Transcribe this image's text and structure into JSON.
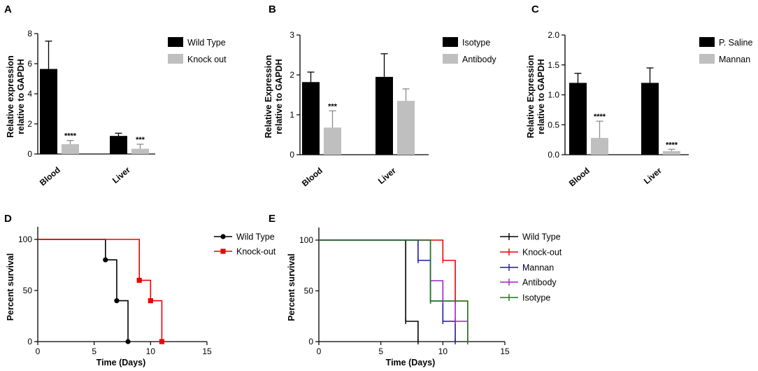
{
  "chart_data": [
    {
      "type": "bar",
      "panel": "A",
      "categories": [
        "Blood",
        "Liver"
      ],
      "ylabel_lines": [
        "Relative expression",
        "relative to GAPDH"
      ],
      "ylim": [
        0,
        8
      ],
      "yticks": [
        0,
        2,
        4,
        6,
        8
      ],
      "ytick_labels": [
        "0",
        "2",
        "4",
        "6",
        "8"
      ],
      "series": [
        {
          "name": "Wild Type",
          "color": "#000000",
          "values": [
            5.65,
            1.2
          ],
          "errors": [
            1.85,
            0.18
          ]
        },
        {
          "name": "Knock out",
          "color": "#bfbfbf",
          "values": [
            0.65,
            0.35
          ],
          "errors": [
            0.25,
            0.3
          ]
        }
      ],
      "annotations": [
        {
          "series": 1,
          "category": 0,
          "text": "****"
        },
        {
          "series": 1,
          "category": 1,
          "text": "***"
        }
      ]
    },
    {
      "type": "bar",
      "panel": "B",
      "categories": [
        "Blood",
        "Liver"
      ],
      "ylabel_lines": [
        "Relative Expression",
        "relative to GAPDH"
      ],
      "ylim": [
        0,
        3
      ],
      "yticks": [
        0,
        1,
        2,
        3
      ],
      "ytick_labels": [
        "0",
        "1",
        "2",
        "3"
      ],
      "series": [
        {
          "name": "Isotype",
          "color": "#000000",
          "values": [
            1.82,
            1.95
          ],
          "errors": [
            0.25,
            0.58
          ]
        },
        {
          "name": "Antibody",
          "color": "#bfbfbf",
          "values": [
            0.68,
            1.35
          ],
          "errors": [
            0.42,
            0.3
          ]
        }
      ],
      "annotations": [
        {
          "series": 1,
          "category": 0,
          "text": "***"
        }
      ]
    },
    {
      "type": "bar",
      "panel": "C",
      "categories": [
        "Blood",
        "Liver"
      ],
      "ylabel_lines": [
        "Relative Expression",
        "relative to GAPDH"
      ],
      "ylim": [
        0,
        2.0
      ],
      "yticks": [
        0,
        0.5,
        1.0,
        1.5,
        2.0
      ],
      "ytick_labels": [
        "0.0",
        "0.5",
        "1.0",
        "1.5",
        "2.0"
      ],
      "series": [
        {
          "name": "P. Saline",
          "color": "#000000",
          "values": [
            1.2,
            1.2
          ],
          "errors": [
            0.16,
            0.25
          ]
        },
        {
          "name": "Mannan",
          "color": "#bfbfbf",
          "values": [
            0.28,
            0.06
          ],
          "errors": [
            0.28,
            0.03
          ]
        }
      ],
      "annotations": [
        {
          "series": 1,
          "category": 0,
          "text": "****"
        },
        {
          "series": 1,
          "category": 1,
          "text": "****"
        }
      ]
    },
    {
      "type": "line",
      "subtype": "survival",
      "panel": "D",
      "xlabel": "Time (Days)",
      "ylabel": "Percent survival",
      "xlim": [
        0,
        15
      ],
      "ylim": [
        0,
        100
      ],
      "xticks": [
        0,
        5,
        10,
        15
      ],
      "yticks": [
        0,
        50,
        100
      ],
      "series": [
        {
          "name": "Wild Type",
          "color": "#000000",
          "marker": "circle",
          "steps": [
            [
              0,
              100
            ],
            [
              6,
              80
            ],
            [
              7,
              40
            ],
            [
              8,
              0
            ]
          ]
        },
        {
          "name": "Knock-out",
          "color": "#ee0000",
          "marker": "square",
          "steps": [
            [
              0,
              100
            ],
            [
              9,
              60
            ],
            [
              10,
              40
            ],
            [
              11,
              0
            ]
          ]
        }
      ]
    },
    {
      "type": "line",
      "subtype": "survival",
      "panel": "E",
      "xlabel": "Time (Days)",
      "ylabel": "Percent survival",
      "xlim": [
        0,
        15
      ],
      "ylim": [
        0,
        100
      ],
      "xticks": [
        0,
        5,
        10,
        15
      ],
      "yticks": [
        0,
        50,
        100
      ],
      "series": [
        {
          "name": "Wild Type",
          "color": "#000000",
          "steps": [
            [
              0,
              100
            ],
            [
              7,
              20
            ],
            [
              8,
              0
            ]
          ]
        },
        {
          "name": "Knock-out",
          "color": "#ee0000",
          "steps": [
            [
              0,
              100
            ],
            [
              10,
              80
            ],
            [
              11,
              40
            ],
            [
              12,
              0
            ]
          ]
        },
        {
          "name": "Mannan",
          "color": "#1a1aa8",
          "steps": [
            [
              0,
              100
            ],
            [
              8,
              80
            ],
            [
              9,
              40
            ],
            [
              10,
              20
            ],
            [
              11,
              0
            ]
          ]
        },
        {
          "name": "Antibody",
          "color": "#a020c8",
          "steps": [
            [
              0,
              100
            ],
            [
              9,
              60
            ],
            [
              10,
              40
            ],
            [
              11,
              20
            ],
            [
              12,
              0
            ]
          ]
        },
        {
          "name": "Isotype",
          "color": "#1a7a1a",
          "steps": [
            [
              0,
              100
            ],
            [
              9,
              40
            ],
            [
              12,
              0
            ]
          ]
        }
      ]
    }
  ]
}
